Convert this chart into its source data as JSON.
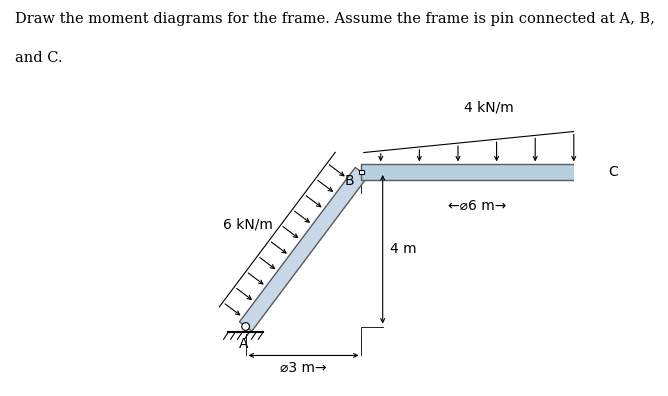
{
  "title_line1": "Draw the moment diagrams for the frame. Assume the frame is pin connected at A, B,",
  "title_line2": "and C.",
  "bg_color": "#ffffff",
  "frame_color_ab": "#c8d8e8",
  "frame_color_bc": "#b8cfe0",
  "frame_edge_color": "#5a5a5a",
  "A": [
    0.0,
    0.0
  ],
  "B": [
    3.0,
    4.0
  ],
  "C": [
    9.0,
    4.0
  ],
  "beam_half_thick": 0.2,
  "load_6_label": "6 kN/m",
  "load_4_label": "4 kN/m",
  "label_A": "A",
  "label_B": "B",
  "label_C": "C",
  "dim_3m": "⌀3 m→",
  "dim_4m": "4 m",
  "dim_6m": "←⌀6 m→",
  "title_fontsize": 10.5,
  "label_fontsize": 10,
  "dim_fontsize": 10
}
